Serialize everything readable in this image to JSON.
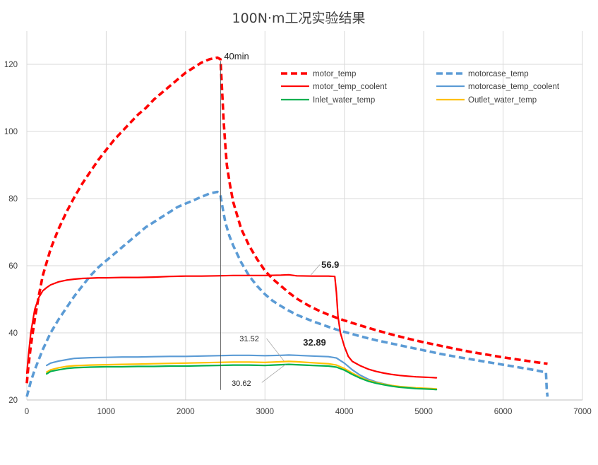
{
  "chart_data": {
    "type": "line",
    "title": "100N·m工况实验结果",
    "xlabel": "",
    "ylabel": "",
    "xlim": [
      0,
      7000
    ],
    "ylim": [
      20,
      125
    ],
    "x_ticks": [
      0,
      1000,
      2000,
      3000,
      4000,
      5000,
      6000,
      7000
    ],
    "y_ticks": [
      20,
      40,
      60,
      80,
      100,
      120
    ],
    "grid": true,
    "legend_position": "top-right",
    "series": [
      {
        "name": "motor_temp",
        "color": "#ff0000",
        "style": "dashed",
        "x": [
          0,
          20,
          50,
          100,
          150,
          200,
          300,
          400,
          500,
          600,
          700,
          800,
          900,
          1000,
          1100,
          1200,
          1300,
          1400,
          1500,
          1600,
          1700,
          1800,
          1900,
          2000,
          2100,
          2200,
          2300,
          2400,
          2440,
          2460,
          2480,
          2500,
          2520,
          2560,
          2600,
          2650,
          2700,
          2800,
          2900,
          3000,
          3100,
          3200,
          3300,
          3400,
          3500,
          3600,
          3700,
          3800,
          3900,
          4000,
          4200,
          4400,
          4600,
          4800,
          5000,
          5200,
          5400,
          5600,
          5800,
          6000,
          6200,
          6400,
          6560
        ],
        "values": [
          25,
          30,
          36,
          44,
          51,
          57,
          65,
          71,
          76,
          80.5,
          84.5,
          88,
          91.5,
          94.5,
          97.5,
          100,
          102.5,
          105,
          107,
          109.5,
          111.5,
          113.5,
          115.5,
          117.5,
          119,
          120.5,
          121.5,
          122,
          121.5,
          112,
          103,
          96,
          90,
          84,
          79,
          75,
          71,
          66,
          62,
          58.5,
          56,
          54,
          52,
          50.2,
          48.8,
          47.5,
          46.4,
          45.4,
          44.5,
          43.7,
          42.2,
          40.8,
          39.5,
          38.3,
          37.2,
          36.2,
          35.2,
          34.3,
          33.5,
          32.7,
          32,
          31.3,
          30.8
        ]
      },
      {
        "name": "motorcase_temp",
        "color": "#5b9bd5",
        "style": "dashed",
        "x": [
          0,
          50,
          100,
          200,
          300,
          400,
          500,
          600,
          700,
          800,
          900,
          1000,
          1100,
          1200,
          1300,
          1400,
          1500,
          1600,
          1700,
          1800,
          1900,
          2000,
          2100,
          2200,
          2300,
          2400,
          2440,
          2460,
          2500,
          2550,
          2600,
          2700,
          2800,
          2900,
          3000,
          3100,
          3200,
          3300,
          3400,
          3500,
          3600,
          3700,
          3800,
          3900,
          4000,
          4200,
          4400,
          4600,
          4800,
          5000,
          5200,
          5400,
          5600,
          5800,
          6000,
          6200,
          6400,
          6540,
          6550,
          6560
        ],
        "values": [
          21,
          25.5,
          29,
          35,
          40,
          44,
          47.5,
          51,
          54,
          57,
          59.5,
          61.5,
          63.5,
          65.5,
          67.5,
          69.5,
          71.5,
          73,
          74.5,
          76,
          77.5,
          78.5,
          79.5,
          80.5,
          81.5,
          82,
          81,
          78,
          73,
          69,
          66,
          61,
          57,
          54,
          51.5,
          49.5,
          48,
          46.6,
          45.4,
          44.4,
          43.5,
          42.6,
          41.8,
          41,
          40.3,
          39,
          37.8,
          36.8,
          35.8,
          34.8,
          33.8,
          32.9,
          32.1,
          31.3,
          30.5,
          29.7,
          28.9,
          28.2,
          23,
          21
        ]
      },
      {
        "name": "motor_temp_coolent",
        "color": "#ff0000",
        "style": "solid",
        "x": [
          0,
          20,
          50,
          100,
          150,
          200,
          250,
          300,
          400,
          500,
          600,
          700,
          800,
          900,
          1000,
          1200,
          1400,
          1600,
          1800,
          2000,
          2200,
          2400,
          2600,
          2800,
          3000,
          3200,
          3300,
          3400,
          3600,
          3800,
          3880,
          3900,
          3920,
          3950,
          4000,
          4050,
          4100,
          4200,
          4300,
          4400,
          4500,
          4600,
          4700,
          4800,
          4900,
          5000,
          5100,
          5160
        ],
        "values": [
          28,
          33,
          40,
          47,
          50.5,
          52.5,
          53.5,
          54.3,
          55.2,
          55.7,
          56,
          56.2,
          56.3,
          56.4,
          56.4,
          56.5,
          56.5,
          56.6,
          56.8,
          56.9,
          56.9,
          57,
          57.1,
          57.1,
          57.1,
          57.2,
          57.3,
          57,
          56.9,
          56.9,
          56.8,
          52,
          45,
          40,
          36,
          33,
          31.5,
          30.2,
          29.2,
          28.5,
          28,
          27.6,
          27.3,
          27.1,
          26.9,
          26.8,
          26.7,
          26.6
        ]
      },
      {
        "name": "motorcase_temp_coolent",
        "color": "#5b9bd5",
        "style": "solid",
        "x": [
          250,
          300,
          400,
          500,
          600,
          800,
          1000,
          1200,
          1400,
          1600,
          1800,
          2000,
          2200,
          2400,
          2600,
          2800,
          3000,
          3200,
          3300,
          3400,
          3600,
          3800,
          3900,
          4000,
          4100,
          4200,
          4300,
          4400,
          4500,
          4600,
          4700,
          4800,
          4900,
          5000,
          5100,
          5160
        ],
        "values": [
          30.3,
          31,
          31.6,
          32,
          32.4,
          32.6,
          32.7,
          32.8,
          32.8,
          32.9,
          33,
          33,
          33.1,
          33.2,
          33.3,
          33.3,
          33.2,
          33.3,
          33.4,
          33.3,
          33.1,
          32.9,
          32.5,
          31,
          29,
          27.4,
          26.2,
          25.4,
          24.8,
          24.3,
          23.9,
          23.7,
          23.5,
          23.4,
          23.3,
          23.2
        ]
      },
      {
        "name": "Inlet_water_temp",
        "color": "#00b050",
        "style": "solid",
        "x": [
          250,
          300,
          400,
          500,
          600,
          800,
          1000,
          1200,
          1400,
          1600,
          1800,
          2000,
          2200,
          2400,
          2600,
          2800,
          3000,
          3200,
          3300,
          3400,
          3600,
          3800,
          3900,
          4000,
          4100,
          4200,
          4300,
          4400,
          4500,
          4600,
          4700,
          4800,
          4900,
          5000,
          5100,
          5160
        ],
        "values": [
          27.8,
          28.5,
          29,
          29.4,
          29.6,
          29.8,
          29.9,
          29.9,
          30,
          30,
          30.1,
          30.1,
          30.2,
          30.3,
          30.4,
          30.4,
          30.3,
          30.5,
          30.6,
          30.5,
          30.3,
          30.1,
          29.8,
          28.9,
          27.6,
          26.5,
          25.6,
          25,
          24.5,
          24.1,
          23.8,
          23.6,
          23.4,
          23.3,
          23.2,
          23.1
        ]
      },
      {
        "name": "Outlet_water_temp",
        "color": "#ffc000",
        "style": "solid",
        "x": [
          250,
          300,
          400,
          500,
          600,
          800,
          1000,
          1200,
          1400,
          1600,
          1800,
          2000,
          2200,
          2400,
          2600,
          2800,
          3000,
          3200,
          3300,
          3400,
          3600,
          3800,
          3900,
          4000,
          4100,
          4200,
          4300,
          4400,
          4500,
          4600,
          4700,
          4800,
          4900,
          5000,
          5100,
          5160
        ],
        "values": [
          28.3,
          29,
          29.6,
          30,
          30.2,
          30.4,
          30.5,
          30.6,
          30.7,
          30.8,
          30.9,
          31,
          31.1,
          31.2,
          31.3,
          31.3,
          31.2,
          31.4,
          31.5,
          31.4,
          31.1,
          30.8,
          30.4,
          29.4,
          28,
          26.8,
          25.8,
          25.2,
          24.7,
          24.3,
          24,
          23.8,
          23.6,
          23.5,
          23.4,
          23.3
        ]
      }
    ],
    "annotations": {
      "vline_label": "40min",
      "vline_x": 2440,
      "peak_label": "56.9",
      "outlet_peak_label": "31.52",
      "case_peak_label": "32.89",
      "inlet_peak_label": "30.62"
    }
  }
}
